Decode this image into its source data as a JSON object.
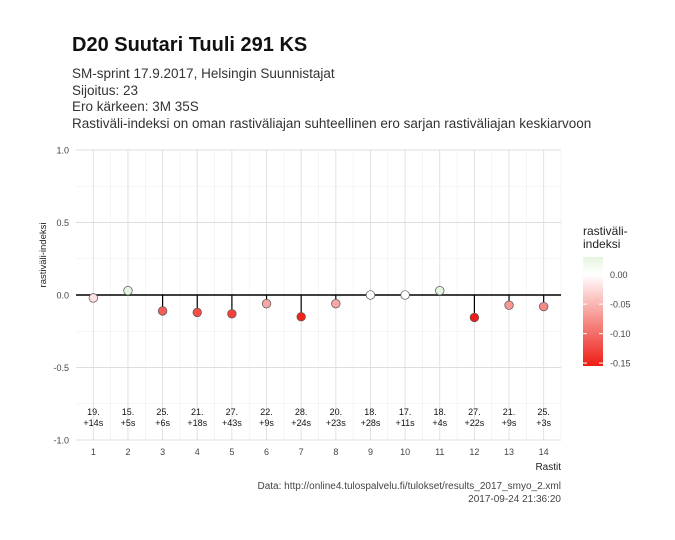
{
  "header": {
    "title": "D20 Suutari Tuuli 291 KS",
    "subtitle_lines": [
      "SM-sprint 17.9.2017, Helsingin Suunnistajat",
      "Sijoitus: 23",
      "Ero kärkeen: 3M 35S",
      "Rastiväli-indeksi on oman rastiväliajan suhteellinen ero sarjan rastiväliajan keskiarvoon"
    ]
  },
  "caption": {
    "source": "Data: http://online4.tulospalvelu.fi/tulokset/results_2017_smyo_2.xml",
    "timestamp": "2017-09-24 21:36:20"
  },
  "chart_data": {
    "type": "scatter",
    "style": "lollipop",
    "xlabel": "Rastit",
    "ylabel": "rastiväli-indeksi",
    "x": [
      1,
      2,
      3,
      4,
      5,
      6,
      7,
      8,
      9,
      10,
      11,
      12,
      13,
      14
    ],
    "y": [
      -0.02,
      0.03,
      -0.11,
      -0.12,
      -0.13,
      -0.06,
      -0.15,
      -0.06,
      0.0,
      0.0,
      0.03,
      -0.155,
      -0.07,
      -0.08
    ],
    "point_labels": [
      [
        "19.",
        "+14s"
      ],
      [
        "15.",
        "+5s"
      ],
      [
        "25.",
        "+6s"
      ],
      [
        "21.",
        "+18s"
      ],
      [
        "27.",
        "+43s"
      ],
      [
        "22.",
        "+9s"
      ],
      [
        "28.",
        "+24s"
      ],
      [
        "20.",
        "+23s"
      ],
      [
        "18.",
        "+28s"
      ],
      [
        "17.",
        "+11s"
      ],
      [
        "18.",
        "+4s"
      ],
      [
        "27.",
        "+22s"
      ],
      [
        "21.",
        "+9s"
      ],
      [
        "25.",
        "+3s"
      ]
    ],
    "xlim": [
      0.5,
      14.5
    ],
    "ylim": [
      -1.0,
      1.0
    ],
    "xticks": [
      1,
      2,
      3,
      4,
      5,
      6,
      7,
      8,
      9,
      10,
      11,
      12,
      13,
      14
    ],
    "yticks": [
      1.0,
      0.5,
      0.0,
      -0.5,
      -1.0
    ],
    "ytick_labels": [
      "1.0",
      "0.5",
      "0.0",
      "-0.5",
      "-1.0"
    ],
    "grid": true,
    "legend": {
      "title": [
        "rastiväli-",
        "indeksi"
      ],
      "position": "right",
      "ticks": [
        0.0,
        -0.05,
        -0.1,
        -0.15
      ],
      "tick_labels": [
        "0.00",
        "-0.05",
        "-0.10",
        "-0.15"
      ],
      "range": [
        -0.155,
        0.03
      ]
    },
    "colors": {
      "high": "#e5f5e0",
      "mid": "#ffffff",
      "low": "#ee1c14",
      "zero_line": "#000000",
      "grid": "#dedede"
    }
  }
}
